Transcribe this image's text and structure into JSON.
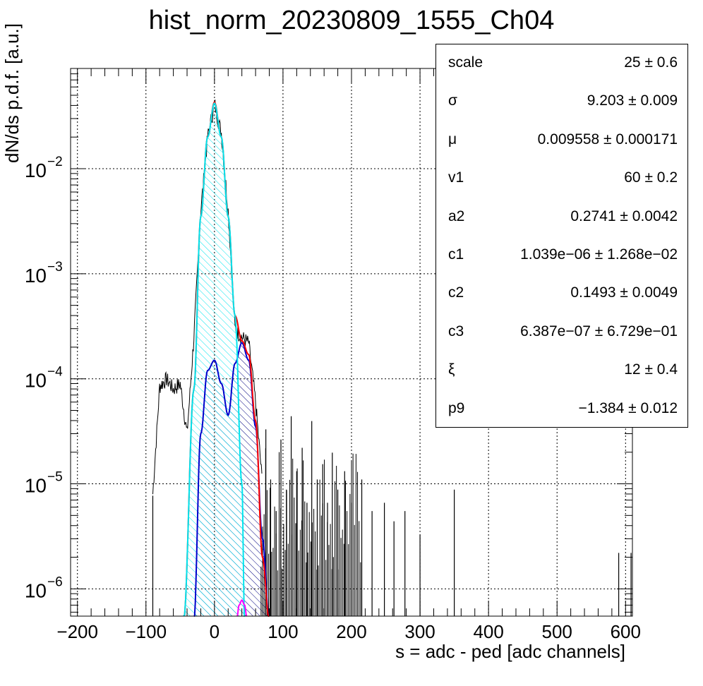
{
  "title": "hist_norm_20230809_1555_Ch04",
  "chart_data": {
    "type": "histogram",
    "title": "hist_norm_20230809_1555_Ch04",
    "xlabel": "s = adc - ped [adc channels]",
    "ylabel": "dN/ds p.d.f. [a.u.]",
    "xlim": [
      -210,
      610
    ],
    "ylim": [
      5.5e-07,
      0.09
    ],
    "yscale": "log",
    "grid": true,
    "x_ticks": [
      -200,
      -100,
      0,
      100,
      200,
      300,
      400,
      500,
      600
    ],
    "x_tick_labels": [
      "−200",
      "−100",
      "0",
      "100",
      "200",
      "300",
      "400",
      "500",
      "600"
    ],
    "y_ticks": [
      1e-06,
      1e-05,
      0.0001,
      0.001,
      0.01
    ],
    "y_tick_labels": [
      {
        "base": "10",
        "exp": "−6"
      },
      {
        "base": "10",
        "exp": "−5"
      },
      {
        "base": "10",
        "exp": "−4"
      },
      {
        "base": "10",
        "exp": "−3"
      },
      {
        "base": "10",
        "exp": "−2"
      }
    ],
    "series": [
      {
        "role": "data histogram",
        "color": "#000000",
        "x": [
          -90,
          -80,
          -70,
          -60,
          -50,
          -40,
          -30,
          -20,
          -10,
          0,
          10,
          20,
          30,
          40,
          50,
          60,
          70
        ],
        "y": [
          8e-06,
          8.5e-05,
          0.0001,
          8e-05,
          9e-05,
          3e-05,
          0.00025,
          0.004,
          0.02,
          0.042,
          0.022,
          0.004,
          0.0003,
          0.00025,
          0.00022,
          6e-05,
          1e-05
        ]
      },
      {
        "role": "total fit",
        "color": "#ff0000",
        "x": [
          -45,
          -30,
          -20,
          -10,
          0,
          10,
          20,
          30,
          40,
          50,
          60,
          70,
          80
        ],
        "y": [
          5e-07,
          8e-05,
          0.0035,
          0.02,
          0.043,
          0.02,
          0.0035,
          0.0004,
          0.00023,
          0.00017,
          4e-05,
          2e-06,
          5e-07
        ]
      },
      {
        "role": "pedestal component",
        "color": "#00e5ee",
        "x": [
          -45,
          -30,
          -20,
          -10,
          0,
          10,
          20,
          30,
          40,
          44
        ],
        "y": [
          5e-07,
          8e-05,
          0.0035,
          0.02,
          0.042,
          0.02,
          0.0035,
          0.0004,
          1e-05,
          5e-07
        ]
      },
      {
        "role": "first photoelectron component",
        "color": "#0000cc",
        "x": [
          -30,
          -20,
          -10,
          0,
          10,
          20,
          30,
          40,
          50,
          60,
          70,
          80
        ],
        "y": [
          5e-07,
          3e-05,
          0.00012,
          0.00015,
          9e-05,
          4.5e-05,
          0.00014,
          0.00022,
          0.00015,
          3.5e-05,
          3e-06,
          5e-07
        ]
      },
      {
        "role": "second photoelectron component",
        "color": "#ff00ff",
        "x": [
          33,
          36,
          40,
          44,
          47
        ],
        "y": [
          5.5e-07,
          7e-07,
          7.8e-07,
          7e-07,
          5.5e-07
        ]
      }
    ],
    "tail_spikes": {
      "x": [
        -90,
        75,
        82,
        90,
        97,
        105,
        112,
        120,
        128,
        135,
        142,
        150,
        158,
        165,
        172,
        180,
        190,
        200,
        215,
        230,
        248,
        262,
        278,
        300,
        350,
        590,
        608
      ],
      "y": [
        3.5e-06,
        1.5e-05,
        5e-06,
        2.5e-06,
        1.2e-05,
        4e-06,
        2e-05,
        6e-06,
        1e-05,
        3e-06,
        1.8e-05,
        5e-06,
        7e-06,
        3e-06,
        9e-06,
        4e-06,
        6e-06,
        3e-06,
        5e-06,
        2.5e-06,
        3e-06,
        2e-06,
        2.5e-06,
        1.5e-06,
        4e-06,
        1e-06,
        1e-06
      ]
    },
    "fit_parameters": [
      {
        "name": "scale",
        "value": "25 ± 0.6"
      },
      {
        "name": "σ",
        "value": "9.203 ± 0.009"
      },
      {
        "name": "μ",
        "value": "0.009558 ± 0.000171"
      },
      {
        "name": "v1",
        "value": "60 ± 0.2"
      },
      {
        "name": "a2",
        "value": "0.2741 ± 0.0042"
      },
      {
        "name": "c1",
        "value": "1.039e−06 ± 1.268e−02"
      },
      {
        "name": "c2",
        "value": "0.1493 ± 0.0049"
      },
      {
        "name": "c3",
        "value": "6.387e−07 ± 6.729e−01"
      },
      {
        "name": "ξ",
        "value": "12 ± 0.4"
      },
      {
        "name": "p9",
        "value": "−1.384 ± 0.012"
      }
    ]
  }
}
